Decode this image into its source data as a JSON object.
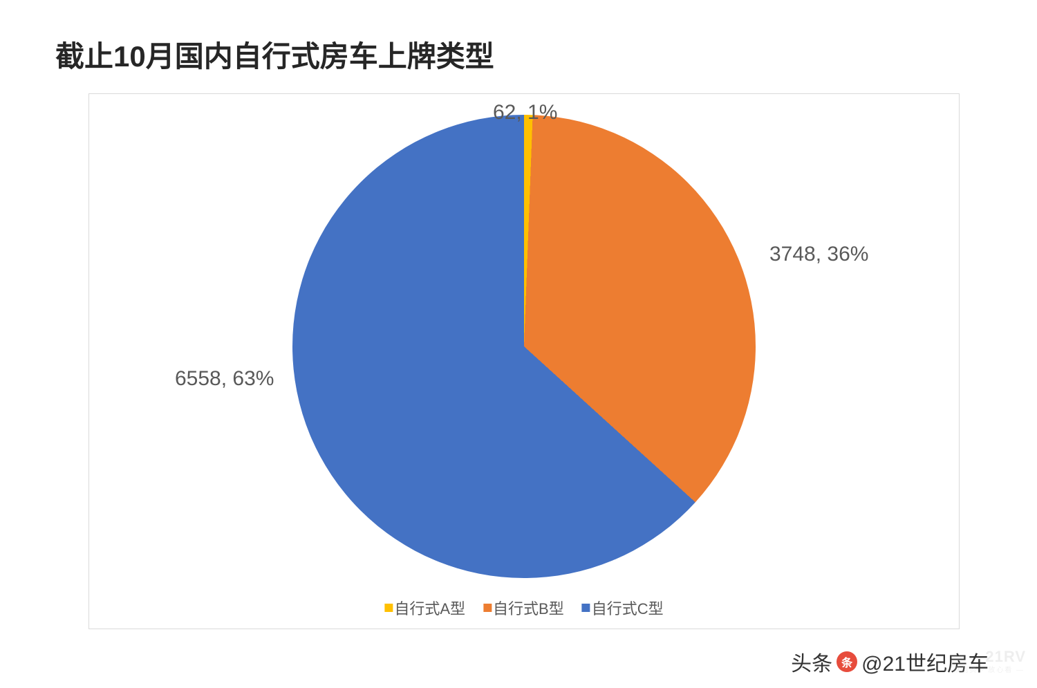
{
  "title": {
    "text": "截止10月国内自行式房车上牌类型",
    "fontsize": 42,
    "color": "#262626",
    "fontweight": "700"
  },
  "chart": {
    "type": "pie",
    "background_color": "#ffffff",
    "border_color": "#d9d9d9",
    "radius": 335,
    "start_angle_deg": 0,
    "slices": [
      {
        "key": "A",
        "label": "自行式A型",
        "value": 62,
        "percent": 1,
        "color": "#ffc000",
        "data_label": "62, 1%"
      },
      {
        "key": "B",
        "label": "自行式B型",
        "value": 3748,
        "percent": 36,
        "color": "#ed7d31",
        "data_label": "3748, 36%"
      },
      {
        "key": "C",
        "label": "自行式C型",
        "value": 6558,
        "percent": 63,
        "color": "#4472c4",
        "data_label": "6558, 63%"
      }
    ],
    "label_fontsize": 30,
    "label_color": "#595959",
    "legend": {
      "position": "bottom",
      "fontsize": 22,
      "text_color": "#595959",
      "swatch_size": 12
    }
  },
  "attribution": {
    "prefix": "头条",
    "handle": "@21世纪房车",
    "fontsize": 30,
    "color": "#333333"
  },
  "watermark": {
    "main": "21RV",
    "sub": "— 原创资 · 放心看 —",
    "fontsize_main": 22,
    "fontsize_sub": 10
  }
}
